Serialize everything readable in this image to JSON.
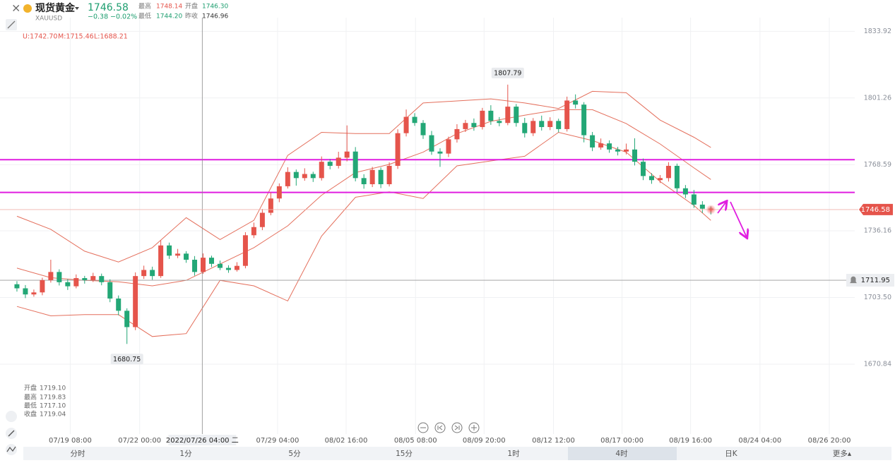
{
  "header": {
    "name": "现货黄金",
    "symbol": "XAUUSD",
    "price": "1746.58",
    "change": "−0.38",
    "change_pct": "−0.02%",
    "stats": [
      {
        "label": "最高",
        "value": "1748.14"
      },
      {
        "label": "开盘",
        "value": "1746.30"
      },
      {
        "label": "最低",
        "value": "1744.20"
      },
      {
        "label": "昨收",
        "value": "1746.96"
      }
    ]
  },
  "info_panel": [
    {
      "label": "开盘",
      "value": "1719.10"
    },
    {
      "label": "最高",
      "value": "1719.83"
    },
    {
      "label": "最低",
      "value": "1717.10"
    },
    {
      "label": "收盘",
      "value": "1719.04"
    }
  ],
  "tabs": [
    "分时",
    "1分",
    "5分",
    "15分",
    "1时",
    "4时",
    "日K",
    "更多▴"
  ],
  "chart_data": {
    "type": "candlestick",
    "up_color": "#e5544b",
    "down_color": "#23a776",
    "ylim": [
      1636.6,
      1840.6
    ],
    "yticks": [
      1670.84,
      {
        "value": 1703.5,
        "label": "1703.50"
      },
      1736.16,
      1768.59,
      1801.26,
      1833.92
    ],
    "xlim": [
      -2,
      99
    ],
    "xticks": [
      {
        "value": 6.3,
        "label": "07/19 08:00"
      },
      {
        "value": 14.5,
        "label": "07/22 00:00"
      },
      {
        "value": 30.8,
        "label": "07/29 04:00"
      },
      {
        "value": 38.9,
        "label": "08/02 16:00"
      },
      {
        "value": 47.1,
        "label": "08/05 08:00"
      },
      {
        "value": 55.2,
        "label": "08/09 20:00"
      },
      {
        "value": 63.4,
        "label": "08/12 12:00"
      },
      {
        "value": 71.5,
        "label": "08/17 00:00"
      },
      {
        "value": 79.6,
        "label": "08/19 16:00"
      },
      {
        "value": 87.8,
        "label": "08/24 04:00"
      },
      {
        "value": 96,
        "label": "08/26 20:00"
      }
    ],
    "grid": true,
    "crosshair": {
      "x": 21.9,
      "label": "2022/07/26 04:00 二"
    },
    "band_readout": [
      "U:1742.70",
      "M:1715.46",
      "L:1688.21"
    ],
    "open": [
      1710,
      1708,
      1705,
      1706,
      1712,
      1716,
      1711,
      1709,
      1713,
      1712,
      1714,
      1711,
      1703,
      1697,
      1689,
      1714,
      1717,
      1714,
      1729,
      1724,
      1725,
      1722,
      1716,
      1723,
      1720,
      1718,
      1717,
      1719,
      1734,
      1738,
      1745,
      1752,
      1758,
      1765,
      1762,
      1764,
      1762,
      1770,
      1768,
      1772,
      1775,
      1762,
      1759,
      1766,
      1759,
      1768,
      1784,
      1792,
      1789,
      1783,
      1775,
      1774,
      1781,
      1786,
      1789,
      1787,
      1795,
      1790,
      1789,
      1797,
      1789,
      1784,
      1790,
      1787,
      1790,
      1786,
      1800,
      1798,
      1783,
      1777,
      1779,
      1776,
      1775,
      1776,
      1770,
      1763,
      1761,
      1762,
      1768,
      1757,
      1754,
      1749,
      1747
    ],
    "high": [
      1711.5,
      1709.6,
      1707.4,
      1713.2,
      1722,
      1717.3,
      1712.5,
      1714.8,
      1714.1,
      1715.6,
      1715.2,
      1712.4,
      1704.5,
      1698.2,
      1715.8,
      1719.1,
      1718.6,
      1731.5,
      1730.4,
      1727.3,
      1726.2,
      1723.8,
      1725.1,
      1724,
      1721.6,
      1719.3,
      1720.8,
      1735.5,
      1740.2,
      1746.9,
      1755.1,
      1759.4,
      1767.3,
      1766.2,
      1766.8,
      1765.1,
      1772.6,
      1771.4,
      1774.9,
      1787.8,
      1777.2,
      1763.9,
      1767.5,
      1767.2,
      1769.7,
      1785.9,
      1795.6,
      1793.8,
      1790.4,
      1785.1,
      1776.6,
      1782.3,
      1788.4,
      1790.5,
      1791.2,
      1796.4,
      1797.7,
      1791.9,
      1807.79,
      1798.3,
      1791.5,
      1791.4,
      1792.6,
      1791.8,
      1791.1,
      1801.9,
      1803,
      1799.2,
      1784.6,
      1781.4,
      1780.5,
      1777.3,
      1778.9,
      1781.5,
      1771.6,
      1764.4,
      1763.5,
      1769.8,
      1769.1,
      1758.6,
      1756.2,
      1750.7,
      1748.14
    ],
    "low": [
      1706.4,
      1703.2,
      1703.9,
      1704.6,
      1710.8,
      1709.4,
      1707.2,
      1708,
      1710.3,
      1711.1,
      1709.5,
      1701.2,
      1694.8,
      1680.75,
      1687.5,
      1712.6,
      1712.2,
      1713.1,
      1722.4,
      1722.8,
      1720.5,
      1714.2,
      1715.1,
      1718.4,
      1716.9,
      1715.6,
      1716.2,
      1717.8,
      1732.6,
      1736.5,
      1743.8,
      1750.2,
      1756.9,
      1758.3,
      1760.7,
      1760.1,
      1760.8,
      1766.3,
      1766.7,
      1770.2,
      1760.4,
      1756.8,
      1757.6,
      1757.1,
      1757.9,
      1766.5,
      1782.4,
      1787.6,
      1781.2,
      1773.4,
      1767.5,
      1772.3,
      1779.4,
      1784.6,
      1785.2,
      1785.8,
      1788.1,
      1787.4,
      1787.9,
      1787.2,
      1781.9,
      1782.6,
      1785.3,
      1785.5,
      1784.4,
      1784.8,
      1796.1,
      1779.5,
      1775.2,
      1775.9,
      1774.4,
      1773.1,
      1773.6,
      1768.2,
      1761,
      1759.2,
      1759.6,
      1760.3,
      1755.1,
      1752.2,
      1747.4,
      1744.9,
      1744.2
    ],
    "close": [
      1708,
      1705,
      1706,
      1712,
      1716,
      1711,
      1709,
      1713,
      1712,
      1714,
      1711,
      1703,
      1697,
      1689,
      1714,
      1717,
      1714,
      1729,
      1724,
      1725,
      1722,
      1716,
      1723,
      1720,
      1718,
      1717,
      1719,
      1734,
      1738,
      1745,
      1752,
      1758,
      1765,
      1762,
      1764,
      1762,
      1770,
      1768,
      1772,
      1775,
      1762,
      1759,
      1766,
      1759,
      1768,
      1784,
      1792,
      1789,
      1783,
      1775,
      1774,
      1781,
      1786,
      1789,
      1787,
      1795,
      1790,
      1789,
      1797,
      1789,
      1784,
      1790,
      1787,
      1790,
      1786,
      1800,
      1798,
      1783,
      1777,
      1779,
      1776,
      1775,
      1776,
      1770,
      1763,
      1761,
      1762,
      1768,
      1757,
      1754,
      1749,
      1747,
      1746.58
    ],
    "bands": [
      {
        "color": "#e46f5c",
        "x": [
          0,
          4,
          8,
          12,
          16,
          20,
          24,
          28,
          32,
          36,
          40,
          44,
          48,
          52,
          56,
          60,
          64,
          68,
          72,
          76,
          80,
          82
        ],
        "values": [
          1743.3,
          1736.9,
          1726.2,
          1720.9,
          1727.9,
          1742.6,
          1731.9,
          1741.3,
          1773.1,
          1784.4,
          1783.8,
          1783.8,
          1798.8,
          1799.8,
          1800.8,
          1798.8,
          1796.1,
          1804.5,
          1803.8,
          1790.4,
          1782,
          1777
        ]
      },
      {
        "color": "#e46f5c",
        "x": [
          0,
          4,
          8,
          12,
          16,
          20,
          24,
          28,
          32,
          36,
          40,
          44,
          48,
          52,
          56,
          60,
          64,
          68,
          72,
          76,
          80,
          82
        ],
        "values": [
          1717.9,
          1713.2,
          1711.9,
          1711.2,
          1709.2,
          1711.9,
          1719.9,
          1727.9,
          1738.6,
          1753.6,
          1764.7,
          1768.7,
          1774.7,
          1783.8,
          1789.8,
          1792.8,
          1795.5,
          1795.5,
          1788.7,
          1778.7,
          1767,
          1761.3
        ]
      },
      {
        "color": "#e46f5c",
        "x": [
          0,
          4,
          8,
          12,
          16,
          20,
          24,
          28,
          32,
          36,
          40,
          44,
          48,
          52,
          56,
          60,
          64,
          68,
          72,
          76,
          80,
          82
        ],
        "values": [
          1699.1,
          1694.5,
          1695.1,
          1695.1,
          1684.4,
          1685.8,
          1711.9,
          1709.2,
          1701.8,
          1733.6,
          1752.6,
          1755.3,
          1752,
          1768,
          1770.4,
          1772.7,
          1784.4,
          1780.4,
          1774.7,
          1760.3,
          1748.6,
          1741.3
        ]
      }
    ],
    "hlines": [
      {
        "value": 1771.0,
        "color": "#e01ee0"
      },
      {
        "value": 1755.0,
        "color": "#e01ee0"
      }
    ],
    "alert_line": 1711.95
  }
}
